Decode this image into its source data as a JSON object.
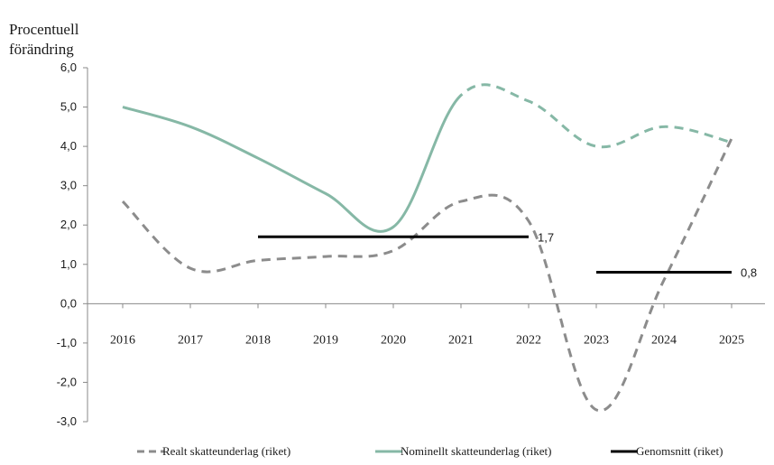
{
  "chart_data": {
    "type": "line",
    "ylabel_lines": [
      "Procentuell",
      "förändring"
    ],
    "ylim": [
      -3.0,
      6.0
    ],
    "yticks": [
      6.0,
      5.0,
      4.0,
      3.0,
      2.0,
      1.0,
      0.0,
      -1.0,
      -2.0,
      -3.0
    ],
    "ytick_labels": [
      "6,0",
      "5,0",
      "4,0",
      "3,0",
      "2,0",
      "1,0",
      "0,0",
      "-1,0",
      "-2,0",
      "-3,0"
    ],
    "categories": [
      "2016",
      "2017",
      "2018",
      "2019",
      "2020",
      "2021",
      "2022",
      "2023",
      "2024",
      "2025"
    ],
    "series": [
      {
        "name": "Realt skatteunderlag (riket)",
        "color": "#8c8c8c",
        "style": "dashed",
        "values": [
          2.6,
          0.9,
          1.1,
          1.2,
          1.35,
          2.6,
          2.1,
          -2.7,
          0.6,
          4.2
        ]
      },
      {
        "name": "Nominellt skatteunderlag (riket)",
        "color": "#86b8a6",
        "style": "solid-then-dashed",
        "solid_until": "2021",
        "values": [
          5.0,
          4.5,
          3.7,
          2.8,
          1.95,
          5.3,
          5.15,
          4.0,
          4.5,
          4.1
        ]
      },
      {
        "name": "Genomsnitt (riket)",
        "color": "#000000",
        "style": "segments",
        "segments": [
          {
            "from": 2018,
            "to": 2022,
            "value": 1.7,
            "label": "1,7"
          },
          {
            "from": 2023,
            "to": 2025,
            "value": 0.8,
            "label": "0,8"
          }
        ]
      }
    ],
    "grid": false,
    "legend_position": "bottom"
  }
}
